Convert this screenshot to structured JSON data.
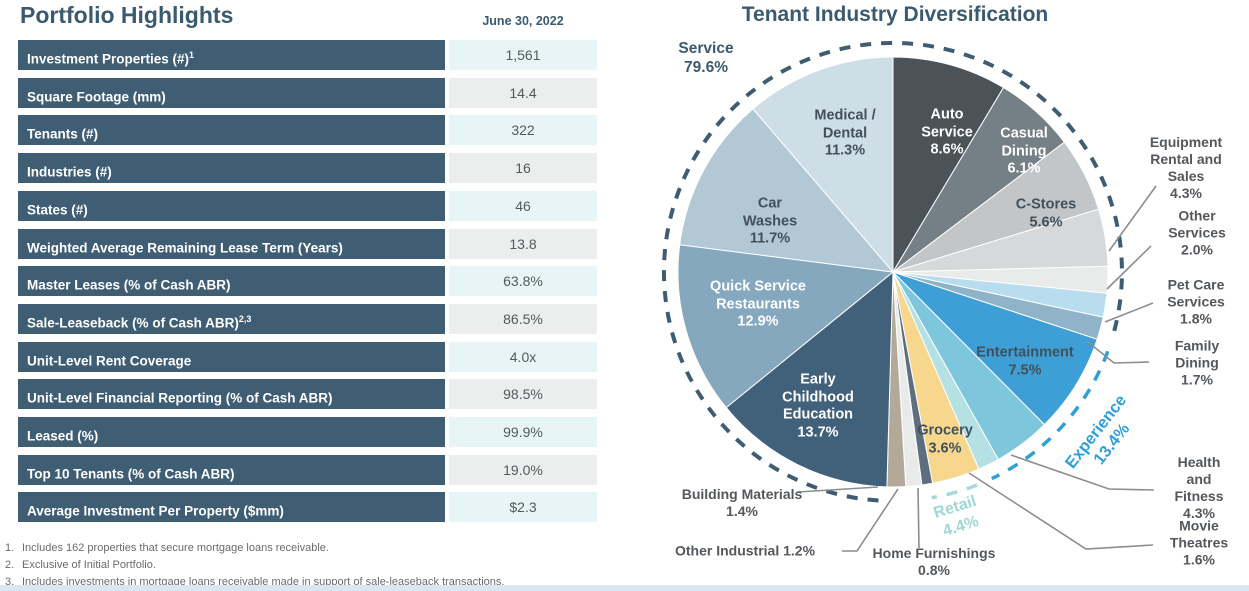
{
  "portfolio": {
    "title": "Portfolio Highlights",
    "as_of_date": "June 30, 2022",
    "rows": [
      {
        "label": "Investment Properties (#)",
        "sup": "1",
        "value": "1,561"
      },
      {
        "label": "Square Footage (mm)",
        "sup": "",
        "value": "14.4"
      },
      {
        "label": "Tenants (#)",
        "sup": "",
        "value": "322"
      },
      {
        "label": "Industries (#)",
        "sup": "",
        "value": "16"
      },
      {
        "label": "States (#)",
        "sup": "",
        "value": "46"
      },
      {
        "label": "Weighted Average Remaining Lease Term (Years)",
        "sup": "",
        "value": "13.8"
      },
      {
        "label": "Master Leases (% of Cash ABR)",
        "sup": "",
        "value": "63.8%"
      },
      {
        "label": "Sale-Leaseback (% of Cash ABR)",
        "sup": "2,3",
        "value": "86.5%"
      },
      {
        "label": "Unit-Level Rent Coverage",
        "sup": "",
        "value": "4.0x"
      },
      {
        "label": "Unit-Level Financial Reporting (% of Cash ABR)",
        "sup": "",
        "value": "98.5%"
      },
      {
        "label": "Leased (%)",
        "sup": "",
        "value": "99.9%"
      },
      {
        "label": "Top 10 Tenants (% of Cash ABR)",
        "sup": "",
        "value": "19.0%"
      },
      {
        "label": "Average Investment Per Property ($mm)",
        "sup": "",
        "value": "$2.3"
      }
    ],
    "footnotes": [
      {
        "num": "1.",
        "text": "Includes 162 properties that secure mortgage loans receivable."
      },
      {
        "num": "2.",
        "text": "Exclusive of Initial Portfolio."
      },
      {
        "num": "3.",
        "text": "Includes investments in mortgage loans receivable made in support of sale-leaseback transactions."
      }
    ]
  },
  "chart_data": {
    "type": "pie",
    "title": "Tenant Industry Diversification",
    "start_angle_deg_clockwise_from_top": 0,
    "slices": [
      {
        "name": "Auto Service",
        "value": 8.6,
        "color": "#4B5358",
        "lines": [
          "Auto",
          "Service",
          "8.6%"
        ]
      },
      {
        "name": "Casual Dining",
        "value": 6.1,
        "color": "#747F86",
        "lines": [
          "Casual",
          "Dining",
          "6.1%"
        ]
      },
      {
        "name": "C-Stores",
        "value": 5.6,
        "color": "#C2C6C8",
        "lines": [
          "C-Stores",
          "5.6%"
        ]
      },
      {
        "name": "Equipment Rental and Sales",
        "value": 4.3,
        "color": "#D6D8D9",
        "lines": [
          "Equipment",
          "Rental and Sales",
          "4.3%"
        ]
      },
      {
        "name": "Other Services",
        "value": 2.0,
        "color": "#E9EAEA",
        "lines": [
          "Other",
          "Services 2.0%"
        ]
      },
      {
        "name": "Pet Care Services",
        "value": 1.8,
        "color": "#B7DDEF",
        "lines": [
          "Pet Care",
          "Services",
          "1.8%"
        ]
      },
      {
        "name": "Family Dining",
        "value": 1.7,
        "color": "#8FB4CA",
        "lines": [
          "Family Dining",
          "1.7%"
        ]
      },
      {
        "name": "Entertainment",
        "value": 7.5,
        "color": "#3E9FD6",
        "lines": [
          "Entertainment",
          "7.5%"
        ]
      },
      {
        "name": "Health and Fitness",
        "value": 4.3,
        "color": "#7EC6DC",
        "lines": [
          "Health and",
          "Fitness 4.3%"
        ]
      },
      {
        "name": "Movie Theatres",
        "value": 1.6,
        "color": "#B5E1E4",
        "lines": [
          "Movie",
          "Theatres 1.6%"
        ]
      },
      {
        "name": "Grocery",
        "value": 3.6,
        "color": "#F6D78D",
        "lines": [
          "Grocery",
          "3.6%"
        ]
      },
      {
        "name": "Home Furnishings",
        "value": 0.8,
        "color": "#5D6F7E",
        "lines": [
          "Home Furnishings",
          "0.8%"
        ]
      },
      {
        "name": "Other Industrial",
        "value": 1.2,
        "color": "#E9EBEB",
        "lines": [
          "Other Industrial 1.2%"
        ]
      },
      {
        "name": "Building Materials",
        "value": 1.4,
        "color": "#B3A999",
        "lines": [
          "Building Materials",
          "1.4%"
        ]
      },
      {
        "name": "Early Childhood Education",
        "value": 13.7,
        "color": "#41617A",
        "lines": [
          "Early",
          "Childhood",
          "Education",
          "13.7%"
        ]
      },
      {
        "name": "Quick Service Restaurants",
        "value": 12.9,
        "color": "#85A8BE",
        "lines": [
          "Quick Service",
          "Restaurants",
          "12.9%"
        ]
      },
      {
        "name": "Car Washes",
        "value": 11.7,
        "color": "#B2C8D5",
        "lines": [
          "Car",
          "Washes",
          "11.7%"
        ]
      },
      {
        "name": "Medical / Dental",
        "value": 11.3,
        "color": "#CEDEE7",
        "lines": [
          "Medical /",
          "Dental",
          "11.3%"
        ]
      }
    ],
    "groups": [
      {
        "name": "Service",
        "pct": "79.6%",
        "color": "#3E5C72",
        "lines": [
          "Service",
          "79.6%"
        ],
        "slice_span": [
          14,
          6
        ]
      },
      {
        "name": "Experience",
        "pct": "13.4%",
        "color": "#2F9FD6",
        "lines": [
          "Experience",
          "13.4%"
        ],
        "slice_span": [
          7,
          9
        ]
      },
      {
        "name": "Retail",
        "pct": "4.4%",
        "color": "#A5DAD7",
        "lines": [
          "Retail",
          "4.4%"
        ],
        "slice_span": [
          10,
          11
        ]
      }
    ]
  }
}
